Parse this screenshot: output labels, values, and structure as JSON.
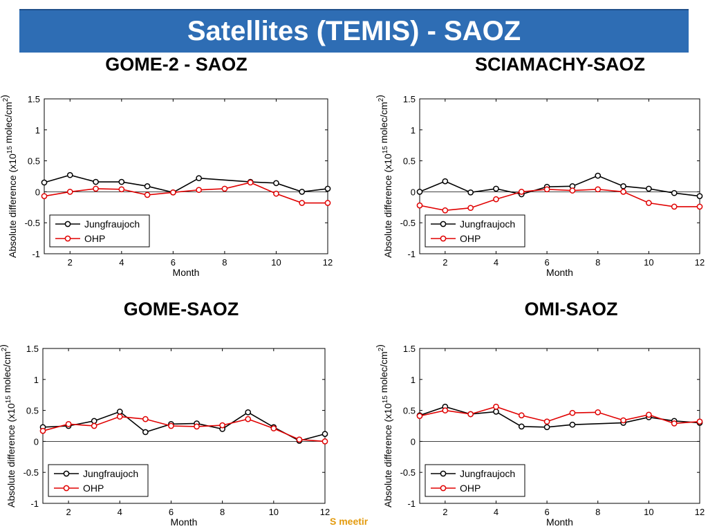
{
  "slide": {
    "title": "Satellites (TEMIS) - SAOZ",
    "footer": "S meetir",
    "colors": {
      "banner": "#2e6db4",
      "jungfraujoch": "#000000",
      "ohp": "#e00000",
      "footer": "#e39a0d"
    }
  },
  "chart_data": [
    {
      "type": "line",
      "title": "GOME-2 - SAOZ",
      "xlabel": "Month",
      "ylabel": "Absolute difference (x10^15 molec/cm^2)",
      "xlim": [
        1,
        12
      ],
      "ylim": [
        -1,
        1.5
      ],
      "xticks": [
        "2",
        "4",
        "6",
        "8",
        "10",
        "12"
      ],
      "yticks": [
        "-1",
        "-0.5",
        "0",
        "0.5",
        "1",
        "1.5"
      ],
      "zero_line": true,
      "legend_position": "bottom-left",
      "series": [
        {
          "name": "Jungfraujoch",
          "color": "#000000",
          "x": [
            1,
            2,
            3,
            4,
            5,
            6,
            7,
            9,
            10,
            11,
            12
          ],
          "y": [
            0.15,
            0.27,
            0.16,
            0.16,
            0.09,
            -0.01,
            0.22,
            0.16,
            0.14,
            0.0,
            0.05
          ]
        },
        {
          "name": "OHP",
          "color": "#e00000",
          "x": [
            1,
            2,
            3,
            4,
            5,
            6,
            7,
            8,
            9,
            10,
            11,
            12
          ],
          "y": [
            -0.07,
            0.0,
            0.05,
            0.04,
            -0.05,
            -0.01,
            0.03,
            0.05,
            0.15,
            -0.03,
            -0.18,
            -0.18
          ]
        }
      ]
    },
    {
      "type": "line",
      "title": "SCIAMACHY-SAOZ",
      "xlabel": "Month",
      "ylabel": "Absolute difference (x10^15 molec/cm^2)",
      "xlim": [
        1,
        12
      ],
      "ylim": [
        -1,
        1.5
      ],
      "xticks": [
        "2",
        "4",
        "6",
        "8",
        "10",
        "12"
      ],
      "yticks": [
        "-1",
        "-0.5",
        "0",
        "0.5",
        "1",
        "1.5"
      ],
      "zero_line": true,
      "legend_position": "bottom-left",
      "series": [
        {
          "name": "Jungfraujoch",
          "color": "#000000",
          "x": [
            1,
            2,
            3,
            4,
            5,
            6,
            7,
            8,
            9,
            10,
            11,
            12
          ],
          "y": [
            0.0,
            0.17,
            -0.01,
            0.05,
            -0.04,
            0.08,
            0.09,
            0.26,
            0.09,
            0.05,
            -0.02,
            -0.07
          ]
        },
        {
          "name": "OHP",
          "color": "#e00000",
          "x": [
            1,
            2,
            3,
            4,
            5,
            6,
            7,
            8,
            9,
            10,
            11,
            12
          ],
          "y": [
            -0.22,
            -0.3,
            -0.26,
            -0.12,
            0.0,
            0.04,
            0.02,
            0.04,
            0.0,
            -0.18,
            -0.24,
            -0.24
          ]
        }
      ]
    },
    {
      "type": "line",
      "title": "GOME-SAOZ",
      "xlabel": "Month",
      "ylabel": "Absolute difference (x10^15 molec/cm^2)",
      "xlim": [
        1,
        12
      ],
      "ylim": [
        -1,
        1.5
      ],
      "xticks": [
        "2",
        "4",
        "6",
        "8",
        "10",
        "12"
      ],
      "yticks": [
        "-1",
        "-0.5",
        "0",
        "0.5",
        "1",
        "1.5"
      ],
      "zero_line": true,
      "legend_position": "bottom-left",
      "series": [
        {
          "name": "Jungfraujoch",
          "color": "#000000",
          "x": [
            1,
            2,
            3,
            4,
            5,
            6,
            7,
            8,
            9,
            10,
            11,
            12
          ],
          "y": [
            0.23,
            0.25,
            0.33,
            0.48,
            0.15,
            0.28,
            0.29,
            0.2,
            0.47,
            0.23,
            0.01,
            0.12
          ]
        },
        {
          "name": "OHP",
          "color": "#e00000",
          "x": [
            1,
            2,
            3,
            4,
            5,
            6,
            7,
            8,
            9,
            10,
            11,
            12
          ],
          "y": [
            0.17,
            0.28,
            0.25,
            0.4,
            0.36,
            0.25,
            0.24,
            0.26,
            0.36,
            0.21,
            0.03,
            0.0
          ]
        }
      ]
    },
    {
      "type": "line",
      "title": "OMI-SAOZ",
      "xlabel": "Month",
      "ylabel": "Absolute difference (x10^15 molec/cm^2)",
      "xlim": [
        1,
        12
      ],
      "ylim": [
        -1,
        1.5
      ],
      "xticks": [
        "2",
        "4",
        "6",
        "8",
        "10",
        "12"
      ],
      "yticks": [
        "-1",
        "-0.5",
        "0",
        "0.5",
        "1",
        "1.5"
      ],
      "zero_line": true,
      "legend_position": "bottom-left",
      "series": [
        {
          "name": "Jungfraujoch",
          "color": "#000000",
          "x": [
            1,
            2,
            3,
            4,
            5,
            6,
            7,
            9,
            10,
            11,
            12
          ],
          "y": [
            0.42,
            0.56,
            0.44,
            0.48,
            0.24,
            0.23,
            0.27,
            0.3,
            0.39,
            0.33,
            0.3
          ]
        },
        {
          "name": "OHP",
          "color": "#e00000",
          "x": [
            1,
            2,
            3,
            4,
            5,
            6,
            7,
            8,
            9,
            10,
            11,
            12
          ],
          "y": [
            0.41,
            0.5,
            0.44,
            0.56,
            0.42,
            0.32,
            0.46,
            0.47,
            0.34,
            0.43,
            0.29,
            0.32
          ]
        }
      ]
    }
  ]
}
